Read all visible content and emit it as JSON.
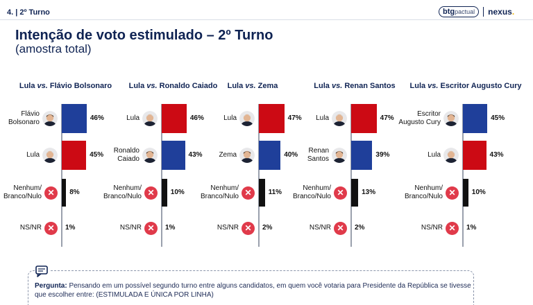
{
  "header": {
    "section": "4. | 2º Turno",
    "brand_btg_strong": "btg",
    "brand_btg_light": "pactual",
    "brand_nexus": "nexus",
    "brand_nexus_dot": "."
  },
  "title": "Intenção de voto estimulado – 2º Turno",
  "subtitle": "(amostra total)",
  "colors": {
    "red": "#cc0a14",
    "blue": "#1f3f9a",
    "black": "#111111",
    "x_icon": "#e03a4a",
    "text": "#0f2353"
  },
  "chart_data": [
    {
      "type": "bar",
      "title_a": "Lula",
      "title_vs": "vs.",
      "title_b": "Flávio Bolsonaro",
      "rows": [
        {
          "label": "Flávio Bolsonaro",
          "label_lines": [
            "Flávio",
            "Bolsonaro"
          ],
          "value": 46,
          "display": "46%",
          "color": "blue",
          "icon": "candidate-photo"
        },
        {
          "label": "Lula",
          "label_lines": [
            "Lula"
          ],
          "value": 45,
          "display": "45%",
          "color": "red",
          "icon": "lula-photo"
        },
        {
          "label": "Nenhum/Branco/Nulo",
          "label_lines": [
            "Nenhum/",
            "Branco/Nulo"
          ],
          "value": 8,
          "display": "8%",
          "color": "black",
          "icon": "x-circle"
        },
        {
          "label": "NS/NR",
          "label_lines": [
            "NS/NR"
          ],
          "value": 1,
          "display": "1%",
          "color": "black",
          "icon": "x-circle"
        }
      ]
    },
    {
      "type": "bar",
      "title_a": "Lula",
      "title_vs": "vs.",
      "title_b": "Ronaldo Caiado",
      "rows": [
        {
          "label": "Lula",
          "label_lines": [
            "Lula"
          ],
          "value": 46,
          "display": "46%",
          "color": "red",
          "icon": "lula-photo"
        },
        {
          "label": "Ronaldo Caiado",
          "label_lines": [
            "Ronaldo",
            "Caiado"
          ],
          "value": 43,
          "display": "43%",
          "color": "blue",
          "icon": "candidate-photo"
        },
        {
          "label": "Nenhum/Branco/Nulo",
          "label_lines": [
            "Nenhum/",
            "Branco/Nulo"
          ],
          "value": 10,
          "display": "10%",
          "color": "black",
          "icon": "x-circle"
        },
        {
          "label": "NS/NR",
          "label_lines": [
            "NS/NR"
          ],
          "value": 1,
          "display": "1%",
          "color": "black",
          "icon": "x-circle"
        }
      ]
    },
    {
      "type": "bar",
      "title_a": "Lula",
      "title_vs": "vs.",
      "title_b": "Zema",
      "rows": [
        {
          "label": "Lula",
          "label_lines": [
            "Lula"
          ],
          "value": 47,
          "display": "47%",
          "color": "red",
          "icon": "lula-photo"
        },
        {
          "label": "Zema",
          "label_lines": [
            "Zema"
          ],
          "value": 40,
          "display": "40%",
          "color": "blue",
          "icon": "candidate-photo"
        },
        {
          "label": "Nenhum/Branco/Nulo",
          "label_lines": [
            "Nenhum/",
            "Branco/Nulo"
          ],
          "value": 11,
          "display": "11%",
          "color": "black",
          "icon": "x-circle"
        },
        {
          "label": "NS/NR",
          "label_lines": [
            "NS/NR"
          ],
          "value": 2,
          "display": "2%",
          "color": "black",
          "icon": "x-circle"
        }
      ]
    },
    {
      "type": "bar",
      "title_a": "Lula",
      "title_vs": "vs.",
      "title_b": "Renan Santos",
      "rows": [
        {
          "label": "Lula",
          "label_lines": [
            "Lula"
          ],
          "value": 47,
          "display": "47%",
          "color": "red",
          "icon": "lula-photo"
        },
        {
          "label": "Renan Santos",
          "label_lines": [
            "Renan",
            "Santos"
          ],
          "value": 39,
          "display": "39%",
          "color": "blue",
          "icon": "candidate-photo"
        },
        {
          "label": "Nenhum/Branco/Nulo",
          "label_lines": [
            "Nenhum/",
            "Branco/Nulo"
          ],
          "value": 13,
          "display": "13%",
          "color": "black",
          "icon": "x-circle"
        },
        {
          "label": "NS/NR",
          "label_lines": [
            "NS/NR"
          ],
          "value": 2,
          "display": "2%",
          "color": "black",
          "icon": "x-circle"
        }
      ]
    },
    {
      "type": "bar",
      "title_a": "Lula",
      "title_vs": "vs.",
      "title_b": "Escritor Augusto Cury",
      "rows": [
        {
          "label": "Escritor Augusto Cury",
          "label_lines": [
            "Escritor",
            "Augusto Cury"
          ],
          "value": 45,
          "display": "45%",
          "color": "blue",
          "icon": "candidate-photo"
        },
        {
          "label": "Lula",
          "label_lines": [
            "Lula"
          ],
          "value": 43,
          "display": "43%",
          "color": "red",
          "icon": "lula-photo"
        },
        {
          "label": "Nenhum/Branco/Nulo",
          "label_lines": [
            "Nenhum/",
            "Branco/Nulo"
          ],
          "value": 10,
          "display": "10%",
          "color": "black",
          "icon": "x-circle"
        },
        {
          "label": "NS/NR",
          "label_lines": [
            "NS/NR"
          ],
          "value": 1,
          "display": "1%",
          "color": "black",
          "icon": "x-circle"
        }
      ]
    }
  ],
  "question": {
    "icon": "speech-bubble-icon",
    "label": "Pergunta:",
    "text": "Pensando em um possível segundo turno entre alguns candidatos, em quem você votaria para Presidente da República se tivesse que escolher entre: (ESTIMULADA E ÚNICA POR LINHA)"
  }
}
